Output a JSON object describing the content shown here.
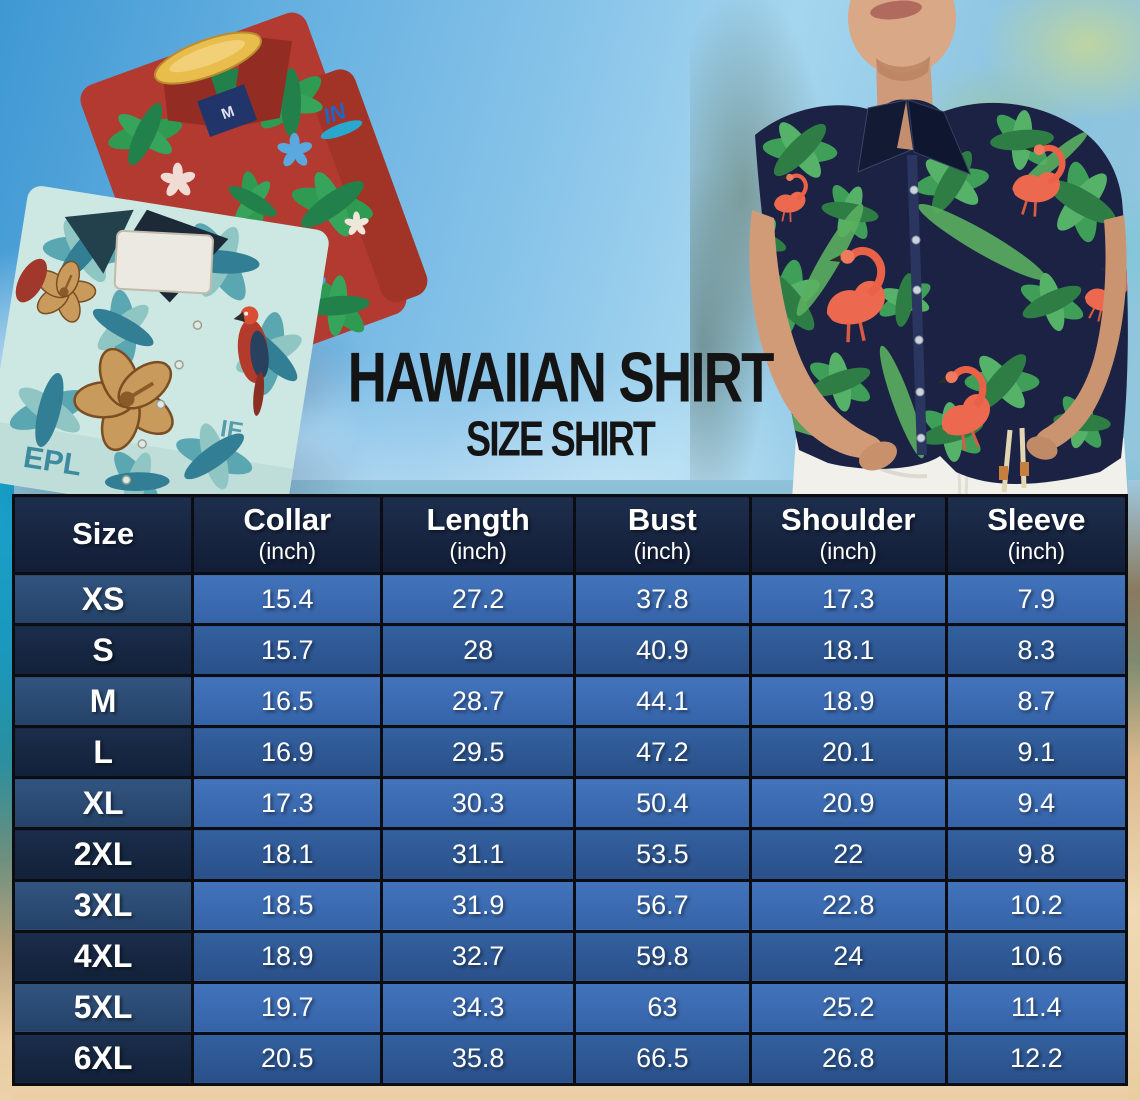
{
  "banner": {
    "title": "HAWAIIAN SHIRT",
    "subtitle": "SIZE SHIRT"
  },
  "photos": {
    "red_shirt_size_tag": "M",
    "red_shirt_logo_text": "IN",
    "teal_shirt_text_1": "EPL",
    "teal_shirt_text_2": "IE"
  },
  "table": {
    "columns": [
      {
        "label": "Size",
        "unit": ""
      },
      {
        "label": "Collar",
        "unit": "(inch)"
      },
      {
        "label": "Length",
        "unit": "(inch)"
      },
      {
        "label": "Bust",
        "unit": "(inch)"
      },
      {
        "label": "Shoulder",
        "unit": "(inch)"
      },
      {
        "label": "Sleeve",
        "unit": "(inch)"
      }
    ]
  },
  "chart_data": {
    "type": "table",
    "title": "Hawaiian Shirt Size Chart",
    "columns": [
      "Size",
      "Collar (inch)",
      "Length (inch)",
      "Bust (inch)",
      "Shoulder (inch)",
      "Sleeve (inch)"
    ],
    "rows": [
      [
        "XS",
        "15.4",
        "27.2",
        "37.8",
        "17.3",
        "7.9"
      ],
      [
        "S",
        "15.7",
        "28",
        "40.9",
        "18.1",
        "8.3"
      ],
      [
        "M",
        "16.5",
        "28.7",
        "44.1",
        "18.9",
        "8.7"
      ],
      [
        "L",
        "16.9",
        "29.5",
        "47.2",
        "20.1",
        "9.1"
      ],
      [
        "XL",
        "17.3",
        "30.3",
        "50.4",
        "20.9",
        "9.4"
      ],
      [
        "2XL",
        "18.1",
        "31.1",
        "53.5",
        "22",
        "9.8"
      ],
      [
        "3XL",
        "18.5",
        "31.9",
        "56.7",
        "22.8",
        "10.2"
      ],
      [
        "4XL",
        "18.9",
        "32.7",
        "59.8",
        "24",
        "10.6"
      ],
      [
        "5XL",
        "19.7",
        "34.3",
        "63",
        "25.2",
        "11.4"
      ],
      [
        "6XL",
        "20.5",
        "35.8",
        "66.5",
        "26.8",
        "12.2"
      ]
    ]
  },
  "colors": {
    "header_bg": "#14203a",
    "row_bright": "#3c6bb4",
    "row_dark": "#2e5793",
    "size_col_bright": "#2b4b79",
    "size_col_dark": "#152743",
    "grid": "#0c0d12",
    "table_text": "#ffffff",
    "title_text": "#141414",
    "sky": "#7fb8dd",
    "sand": "#ecd3a8",
    "shirt_red": "#b33a30",
    "shirt_teal": "#cde7e3",
    "shirt_navy": "#1b2244",
    "flamingo": "#ec6950",
    "leaf_green": "#3f9e58"
  }
}
